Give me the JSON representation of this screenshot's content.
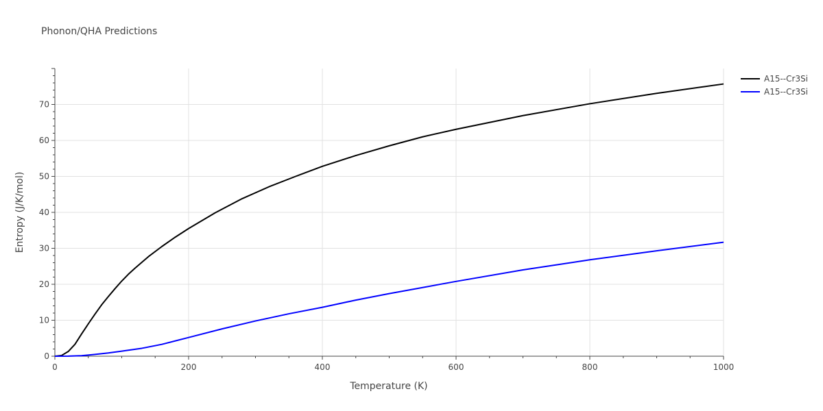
{
  "chart_data": {
    "type": "line",
    "title": "Phonon/QHA Predictions",
    "xlabel": "Temperature (K)",
    "ylabel": "Entropy (J/K/mol)",
    "xlim": [
      0,
      1000
    ],
    "ylim": [
      0,
      80
    ],
    "xticks": [
      0,
      200,
      400,
      600,
      800,
      1000
    ],
    "yticks": [
      0,
      10,
      20,
      30,
      40,
      50,
      60,
      70
    ],
    "grid": true,
    "legend_position": "top-right",
    "series": [
      {
        "name": "A15--Cr3Si",
        "color": "#000000",
        "x": [
          0,
          10,
          20,
          30,
          40,
          50,
          60,
          70,
          80,
          90,
          100,
          110,
          120,
          140,
          160,
          180,
          200,
          240,
          280,
          320,
          360,
          400,
          450,
          500,
          550,
          600,
          700,
          800,
          900,
          1000
        ],
        "y": [
          0,
          0.2,
          1.3,
          3.3,
          6.2,
          9.0,
          11.7,
          14.3,
          16.6,
          18.8,
          20.9,
          22.8,
          24.5,
          27.7,
          30.5,
          33.1,
          35.5,
          39.9,
          43.8,
          47.1,
          50.0,
          52.8,
          55.8,
          58.5,
          61.0,
          63.1,
          66.9,
          70.2,
          73.1,
          75.7
        ]
      },
      {
        "name": "A15--Cr3Si",
        "color": "#0000ff",
        "x": [
          0,
          20,
          40,
          60,
          80,
          100,
          130,
          160,
          200,
          250,
          300,
          350,
          400,
          450,
          500,
          550,
          600,
          700,
          800,
          900,
          1000
        ],
        "y": [
          0,
          0.02,
          0.15,
          0.5,
          0.9,
          1.4,
          2.2,
          3.3,
          5.2,
          7.6,
          9.8,
          11.8,
          13.6,
          15.6,
          17.4,
          19.1,
          20.8,
          24.0,
          26.8,
          29.3,
          31.7
        ]
      }
    ]
  }
}
